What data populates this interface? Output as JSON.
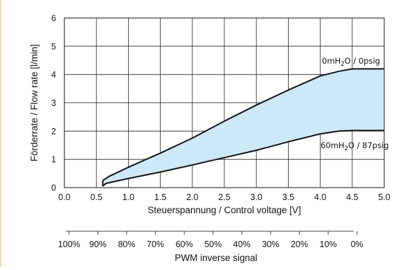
{
  "chart_data": {
    "type": "area",
    "title": "",
    "xlabel": "Steuerspannung / Control voltage [V]",
    "ylabel": "Förderrate / Flow rate [l/min]",
    "xlim": [
      0.0,
      5.0
    ],
    "ylim": [
      0,
      6
    ],
    "x_ticks": [
      "0.0",
      "0.5",
      "1.0",
      "1.5",
      "2.0",
      "2.5",
      "3.0",
      "3.5",
      "4.0",
      "4.5",
      "5.0"
    ],
    "y_ticks": [
      "0",
      "1",
      "2",
      "3",
      "4",
      "5",
      "6"
    ],
    "grid": true,
    "fill_color": "#cde8f6",
    "line_color": "#111111",
    "series": [
      {
        "name": "0mH2O / 0psig",
        "label_main": "0mH",
        "label_sub": "2",
        "label_rest": "O / 0psig",
        "x": [
          0.6,
          0.7,
          1.0,
          1.5,
          2.0,
          2.5,
          3.0,
          3.5,
          4.0,
          4.3,
          4.5,
          5.0
        ],
        "y": [
          0.25,
          0.4,
          0.72,
          1.22,
          1.75,
          2.35,
          2.92,
          3.45,
          3.95,
          4.12,
          4.2,
          4.2
        ]
      },
      {
        "name": "60mH2O / 87psig",
        "label_main": "60mH",
        "label_sub": "2",
        "label_rest": "O / 87psig",
        "x": [
          0.6,
          0.65,
          1.0,
          1.5,
          2.0,
          2.5,
          3.0,
          3.5,
          4.0,
          4.3,
          4.5,
          5.0
        ],
        "y": [
          0.05,
          0.15,
          0.32,
          0.55,
          0.8,
          1.06,
          1.32,
          1.62,
          1.9,
          2.0,
          2.02,
          2.02
        ]
      }
    ],
    "secondary_axis": {
      "label": "PWM inverse signal",
      "ticks": [
        "100%",
        "90%",
        "80%",
        "70%",
        "60%",
        "50%",
        "40%",
        "30%",
        "20%",
        "10%",
        "0%"
      ]
    }
  }
}
